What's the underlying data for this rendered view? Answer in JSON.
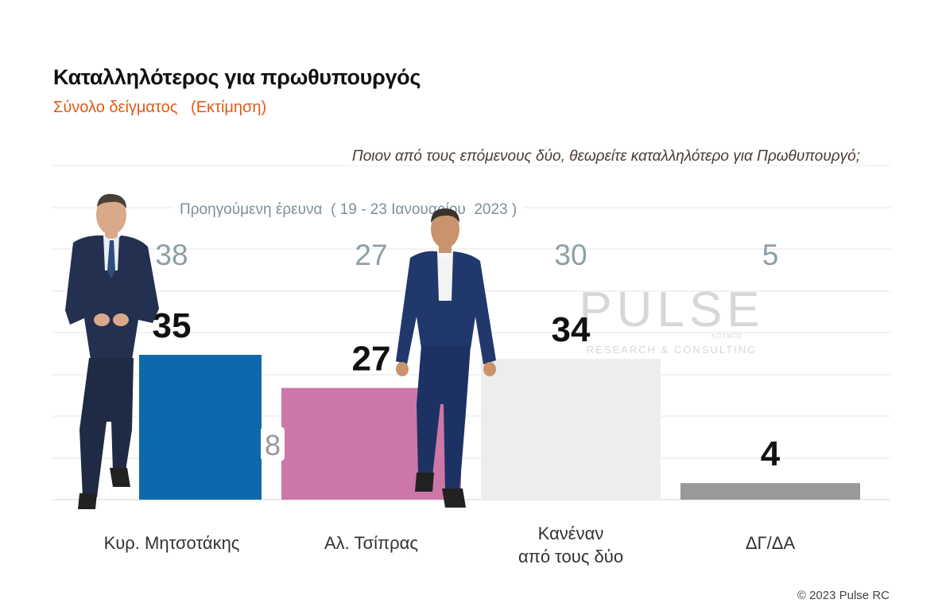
{
  "title": "Καταλληλότερος για πρωθυπουργός",
  "subtitle": "Σύνολο δείγματος   (Εκτίμηση)",
  "question": "Ποιον από τους επόμενους δύο, θεωρείτε καταλληλότερο για Πρωθυπουργό;",
  "previous_label": "Προηγούμενη έρευνα  ( 19 - 23 Ιανουαρίου  2023 )",
  "copyright": "© 2023 Pulse RC",
  "watermark": {
    "main": "PULSE",
    "sub": "RESEARCH & CONSULTING",
    "tag": "ΚΟΣΜΟΣ"
  },
  "chart_data": {
    "type": "bar",
    "categories": [
      "Κυρ. Μητσοτάκης",
      "Αλ. Τσίπρας",
      "Κανέναν\nαπό τους δύο",
      "ΔΓ/ΔΑ"
    ],
    "series": [
      {
        "name": "",
        "values": [
          35,
          27,
          34,
          4
        ],
        "colors": [
          "#0f68aa",
          "#cc77a8",
          "#ededed",
          "#999999"
        ]
      },
      {
        "name": "Προηγούμενη έρευνα  ( 19 - 23 Ιανουαρίου  2023 )",
        "values": [
          38,
          27,
          30,
          5
        ]
      }
    ],
    "difference_label": {
      "category": "Κυρ. Μητσοτάκης",
      "text": "8"
    },
    "ylim": [
      0,
      40
    ],
    "grid": true,
    "colors": {
      "previous": "#8e9ea6",
      "current": "#111111"
    }
  }
}
